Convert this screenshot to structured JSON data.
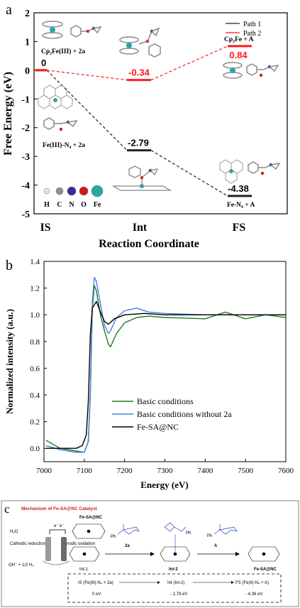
{
  "chart_data": [
    {
      "type": "line",
      "panel_label": "a",
      "ylabel": "Free Energy (eV)",
      "xlabel": "Reaction Coordinate",
      "ylim": [
        -5,
        2
      ],
      "yticks": [
        "2",
        "1",
        "0",
        "-1",
        "-2",
        "-3",
        "-4",
        "-5"
      ],
      "categories": [
        "IS",
        "Int",
        "FS"
      ],
      "series": [
        {
          "name": "Path 1",
          "color": "#222222",
          "values": [
            0,
            -2.79,
            -4.38
          ],
          "labels": [
            "0",
            "-2.79",
            "-4.38"
          ]
        },
        {
          "name": "Path 2",
          "color": "#ff1a1a",
          "values": [
            0,
            -0.34,
            0.84
          ],
          "labels": [
            "0",
            "-0.34",
            "0.84"
          ]
        }
      ],
      "annotations": {
        "is_path2": "Cp₂Fe(III) + 2a",
        "is_path1": "Fe(III)-N₄ + 2a",
        "fs_path2": "Cp₂Fe + A",
        "fs_path1": "Fe-N₄ + A"
      },
      "atom_legend": [
        {
          "symbol": "H",
          "color": "#e6e6e6"
        },
        {
          "symbol": "C",
          "color": "#8f8f8f"
        },
        {
          "symbol": "N",
          "color": "#3030a0"
        },
        {
          "symbol": "O",
          "color": "#d01818"
        },
        {
          "symbol": "Fe",
          "color": "#2aa6a6"
        }
      ]
    },
    {
      "type": "line",
      "panel_label": "b",
      "ylabel": "Normalized intensity (a.u.)",
      "xlabel": "Energy (eV)",
      "xlim": [
        7000,
        7600
      ],
      "ylim": [
        -0.1,
        1.4
      ],
      "xticks": [
        7000,
        7100,
        7200,
        7300,
        7400,
        7500,
        7600
      ],
      "yticks": [
        0.0,
        0.2,
        0.4,
        0.6,
        0.8,
        1.0,
        1.2,
        1.4
      ],
      "legend_position": "bottom-left",
      "series": [
        {
          "name": "Basic conditions",
          "color": "#1f7a1f",
          "x": [
            7005,
            7040,
            7080,
            7100,
            7110,
            7115,
            7120,
            7125,
            7130,
            7140,
            7150,
            7160,
            7165,
            7180,
            7200,
            7230,
            7260,
            7300,
            7400,
            7450,
            7500,
            7550,
            7600
          ],
          "y": [
            0.06,
            0.0,
            -0.02,
            -0.03,
            0.05,
            0.4,
            1.05,
            1.22,
            1.18,
            1.0,
            0.88,
            0.78,
            0.76,
            0.86,
            0.94,
            0.98,
            0.99,
            0.98,
            0.97,
            1.02,
            0.97,
            1.0,
            0.98
          ]
        },
        {
          "name": "Basic conditions without 2a",
          "color": "#4a7fe0",
          "x": [
            7005,
            7040,
            7080,
            7100,
            7110,
            7115,
            7120,
            7125,
            7130,
            7140,
            7150,
            7160,
            7165,
            7180,
            7200,
            7230,
            7260,
            7300,
            7400,
            7500,
            7600
          ],
          "y": [
            0.02,
            -0.01,
            -0.03,
            -0.03,
            0.05,
            0.42,
            1.1,
            1.28,
            1.25,
            1.08,
            0.92,
            0.86,
            0.88,
            0.98,
            1.03,
            1.05,
            1.02,
            1.01,
            1.0,
            1.0,
            1.0
          ]
        },
        {
          "name": "Fe-SA@NC",
          "color": "#000000",
          "x": [
            7005,
            7040,
            7080,
            7095,
            7105,
            7110,
            7115,
            7120,
            7130,
            7140,
            7150,
            7160,
            7175,
            7200,
            7250,
            7300,
            7400,
            7500,
            7600
          ],
          "y": [
            0.0,
            0.0,
            0.0,
            0.02,
            0.1,
            0.35,
            0.85,
            1.05,
            1.1,
            1.02,
            0.95,
            0.93,
            0.97,
            1.0,
            1.01,
            1.0,
            1.0,
            1.0,
            1.0
          ]
        }
      ]
    }
  ],
  "panel_c": {
    "label": "c",
    "title": "Mechanism of Fe-SA@NC Catalyst",
    "h2o": "H₂O",
    "cathodic": "Cathodic reduction",
    "anodic": "Anodic oxidation",
    "electron": "e⁻",
    "products": "OH⁻ + 1/2 H₂",
    "catalyst_top": "Fe-SA@NC",
    "catalyst_final": "Fe-SA@NC",
    "int1": "Int-1",
    "int2": "Int-2",
    "reagent_2a": "2a",
    "reagent_A": "A",
    "ph1": "Ph",
    "ph2": "Ph",
    "ph3": "Ph",
    "box_is": "IS (Fe(III)-N₄ + 2a)",
    "box_is_e": "0 eV",
    "box_int": "Int (Int-2)",
    "box_int_e": "- 2.79 eV",
    "box_fs": "FS (Fe(II)-N₄ + A)",
    "box_fs_e": "- 4.38 eV"
  }
}
